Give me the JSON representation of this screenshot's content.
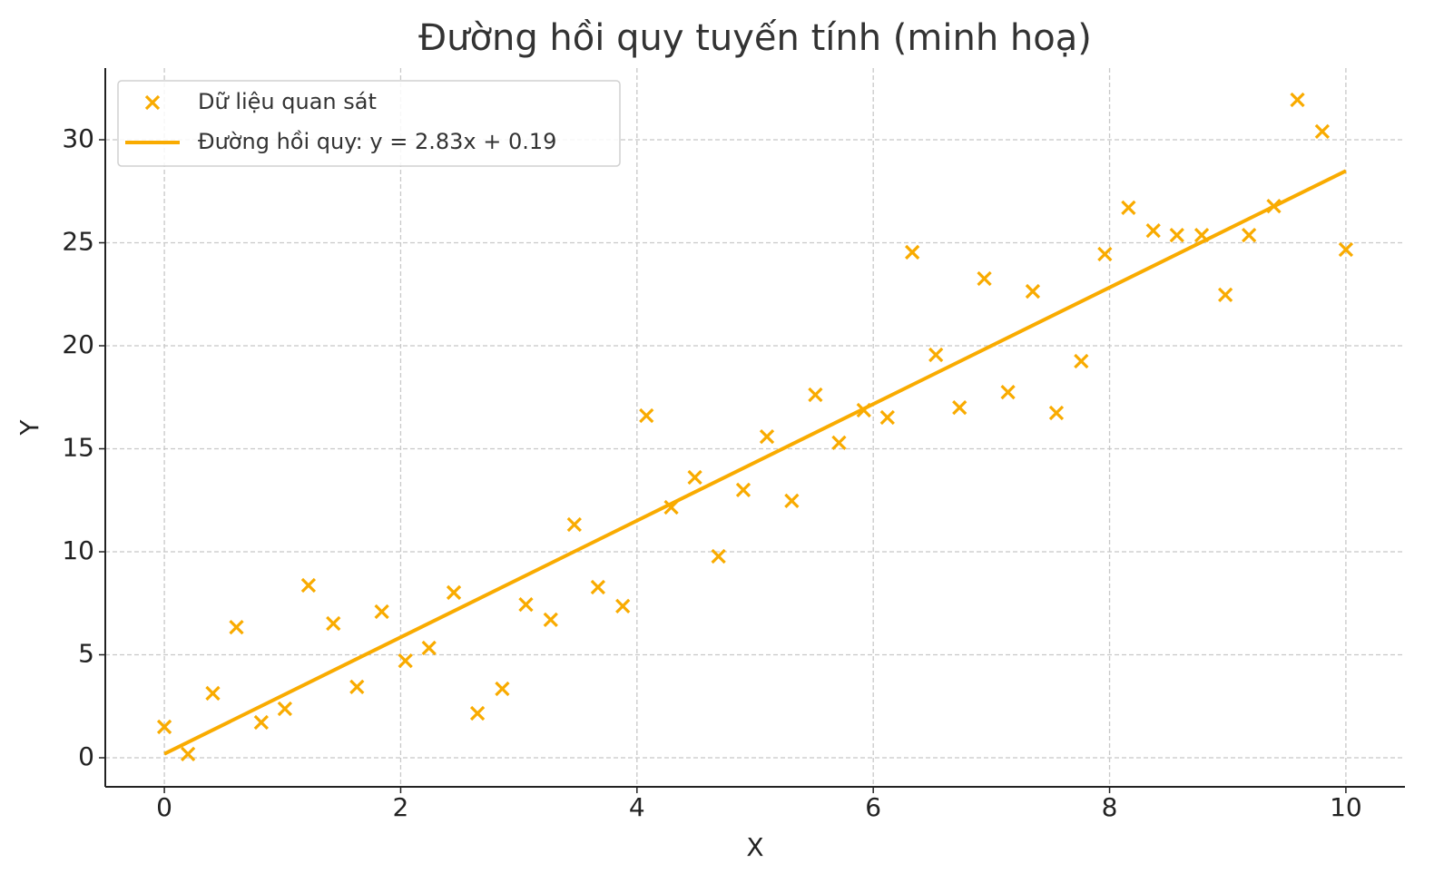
{
  "chart_data": {
    "type": "scatter",
    "title": "Đường hồi quy tuyến tính (minh hoạ)",
    "x_label": "X",
    "y_label": "Y",
    "xlim": [
      -0.5,
      10.5
    ],
    "ylim": [
      -1.41,
      33.48
    ],
    "xticks": [
      0,
      2,
      4,
      6,
      8,
      10
    ],
    "yticks": [
      0,
      5,
      10,
      15,
      20,
      25,
      30
    ],
    "grid": true,
    "legend": "upper left",
    "series": [
      {
        "name": "Dữ liệu quan sát",
        "type": "scatter",
        "color": "#f9ab00",
        "x": [
          0,
          0.2,
          0.41,
          0.61,
          0.82,
          1.02,
          1.22,
          1.43,
          1.63,
          1.84,
          2.04,
          2.24,
          2.45,
          2.65,
          2.86,
          3.06,
          3.27,
          3.47,
          3.67,
          3.88,
          4.08,
          4.29,
          4.49,
          4.69,
          4.9,
          5.1,
          5.31,
          5.51,
          5.71,
          5.92,
          6.12,
          6.33,
          6.53,
          6.73,
          6.94,
          7.14,
          7.35,
          7.55,
          7.76,
          7.96,
          8.16,
          8.37,
          8.57,
          8.78,
          8.98,
          9.18,
          9.39,
          9.59,
          9.8,
          10
        ],
        "values": [
          1.5,
          0.18,
          3.13,
          6.34,
          1.72,
          2.38,
          8.37,
          6.52,
          3.44,
          7.09,
          4.71,
          5.33,
          8.02,
          2.16,
          3.35,
          7.44,
          6.7,
          11.32,
          8.28,
          7.36,
          16.61,
          12.16,
          13.61,
          9.78,
          13.0,
          15.59,
          12.47,
          17.62,
          15.29,
          16.87,
          16.52,
          24.54,
          19.56,
          17.0,
          23.26,
          17.75,
          22.64,
          16.74,
          19.25,
          24.45,
          26.7,
          25.59,
          25.37,
          25.37,
          22.47,
          25.37,
          26.78,
          31.94,
          30.4,
          24.67
        ]
      },
      {
        "name": "Đường hồi quy: y = 2.83x + 0.19",
        "type": "line",
        "color": "#f9ab00",
        "x": [
          0,
          10
        ],
        "values": [
          0.19,
          28.49
        ]
      }
    ]
  }
}
